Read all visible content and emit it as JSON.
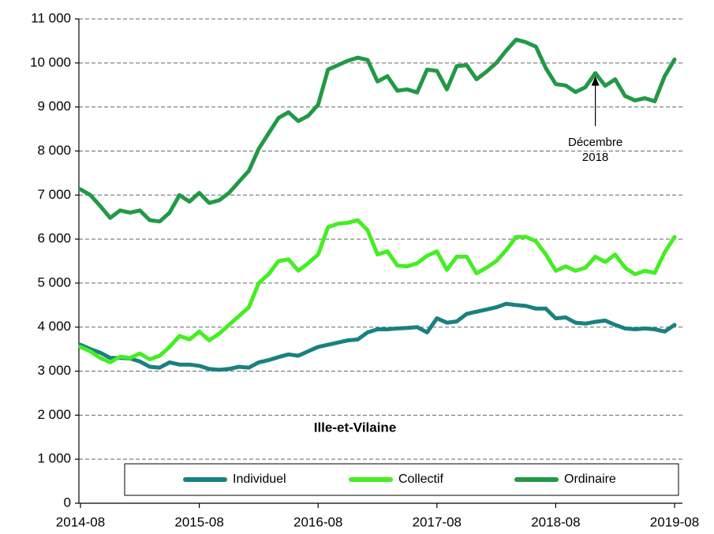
{
  "chart_data": {
    "type": "line",
    "title": "Ille-et-Vilaine",
    "annotation": [
      "Décembre",
      "2018"
    ],
    "categories": [
      "2014-08",
      null,
      null,
      null,
      null,
      null,
      null,
      null,
      null,
      null,
      null,
      null,
      "2015-08",
      null,
      null,
      null,
      null,
      null,
      null,
      null,
      null,
      null,
      null,
      null,
      "2016-08",
      null,
      null,
      null,
      null,
      null,
      null,
      null,
      null,
      null,
      null,
      null,
      "2017-08",
      null,
      null,
      null,
      null,
      null,
      null,
      null,
      null,
      null,
      null,
      null,
      "2018-08",
      null,
      null,
      null,
      null,
      null,
      null,
      null,
      null,
      null,
      null,
      null,
      "2019-08"
    ],
    "ylim": [
      0,
      11000
    ],
    "yticks": [
      0,
      {
        "value": 1000,
        "label": "1 000"
      },
      {
        "value": 2000,
        "label": "2 000"
      },
      {
        "value": 3000,
        "label": "3 000"
      },
      {
        "value": 4000,
        "label": "4 000"
      },
      {
        "value": 5000,
        "label": "5 000"
      },
      {
        "value": 6000,
        "label": "6 000"
      },
      {
        "value": 7000,
        "label": "7 000"
      },
      {
        "value": 8000,
        "label": "8 000"
      },
      {
        "value": 9000,
        "label": "9 000"
      },
      {
        "value": 10000,
        "label": "10 000"
      },
      {
        "value": 11000,
        "label": "11 000"
      }
    ],
    "grid": true,
    "legend": "bottom",
    "series": [
      {
        "name": "Individuel",
        "color": "#1a8080",
        "values": [
          3600,
          3500,
          3420,
          3300,
          3300,
          3290,
          3220,
          3100,
          3080,
          3200,
          3150,
          3150,
          3120,
          3050,
          3030,
          3050,
          3100,
          3080,
          3200,
          3250,
          3320,
          3380,
          3350,
          3450,
          3550,
          3600,
          3650,
          3700,
          3720,
          3880,
          3950,
          3950,
          3970,
          3980,
          4000,
          3880,
          4200,
          4100,
          4130,
          4300,
          4350,
          4400,
          4450,
          4530,
          4500,
          4480,
          4420,
          4420,
          4200,
          4220,
          4100,
          4080,
          4120,
          4150,
          4050,
          3970,
          3950,
          3970,
          3950,
          3900,
          4050
        ]
      },
      {
        "name": "Collectif",
        "color": "#44ee22",
        "values": [
          3550,
          3450,
          3300,
          3200,
          3330,
          3300,
          3400,
          3270,
          3350,
          3550,
          3800,
          3720,
          3900,
          3700,
          3850,
          4050,
          4250,
          4450,
          5000,
          5200,
          5500,
          5540,
          5280,
          5450,
          5650,
          6270,
          6350,
          6370,
          6430,
          6200,
          5650,
          5720,
          5400,
          5380,
          5450,
          5620,
          5720,
          5300,
          5600,
          5600,
          5220,
          5350,
          5500,
          5750,
          6050,
          6050,
          5950,
          5650,
          5280,
          5380,
          5280,
          5350,
          5600,
          5480,
          5650,
          5350,
          5200,
          5280,
          5230,
          5700,
          6050
        ]
      },
      {
        "name": "Ordinaire",
        "color": "#229944",
        "values": [
          7130,
          7000,
          6750,
          6480,
          6650,
          6600,
          6650,
          6430,
          6400,
          6600,
          7000,
          6850,
          7050,
          6820,
          6880,
          7050,
          7300,
          7550,
          8050,
          8400,
          8750,
          8880,
          8680,
          8800,
          9050,
          9850,
          9950,
          10050,
          10120,
          10070,
          9580,
          9700,
          9370,
          9400,
          9330,
          9850,
          9820,
          9400,
          9930,
          9950,
          9630,
          9800,
          10000,
          10280,
          10530,
          10470,
          10370,
          9880,
          9520,
          9490,
          9340,
          9450,
          9770,
          9480,
          9630,
          9250,
          9150,
          9200,
          9130,
          9700,
          10080
        ]
      }
    ]
  }
}
